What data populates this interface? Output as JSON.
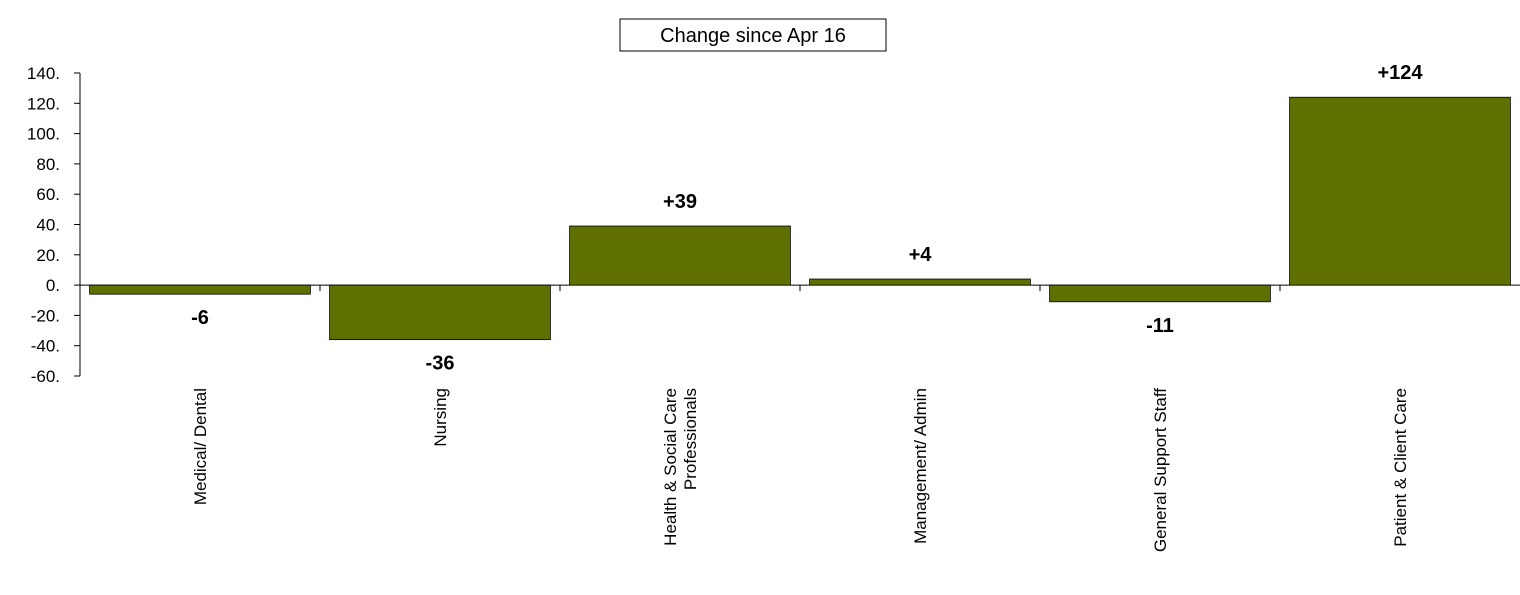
{
  "chart_data": {
    "type": "bar",
    "title": "Change since Apr 16",
    "categories": [
      [
        "Medical/ Dental"
      ],
      [
        "Nursing"
      ],
      [
        "Health & Social Care",
        "Professionals"
      ],
      [
        "Management/ Admin"
      ],
      [
        "General Support Staff"
      ],
      [
        "Patient & Client Care"
      ]
    ],
    "values": [
      -6,
      -36,
      39,
      4,
      -11,
      124
    ],
    "data_labels": [
      "-6",
      "-36",
      "+39",
      "+4",
      "-11",
      "+124"
    ],
    "ylim": [
      -60,
      140
    ],
    "yticks": [
      140,
      120,
      100,
      80,
      60,
      40,
      20,
      0,
      -20,
      -40,
      -60
    ],
    "ytick_labels": [
      "140.",
      "120.",
      "100.",
      "80.",
      "60.",
      "40.",
      "20.",
      "0.",
      "-20.",
      "-40.",
      "-60."
    ],
    "bar_color": "#5f7000",
    "grid": false,
    "legend": "none"
  }
}
